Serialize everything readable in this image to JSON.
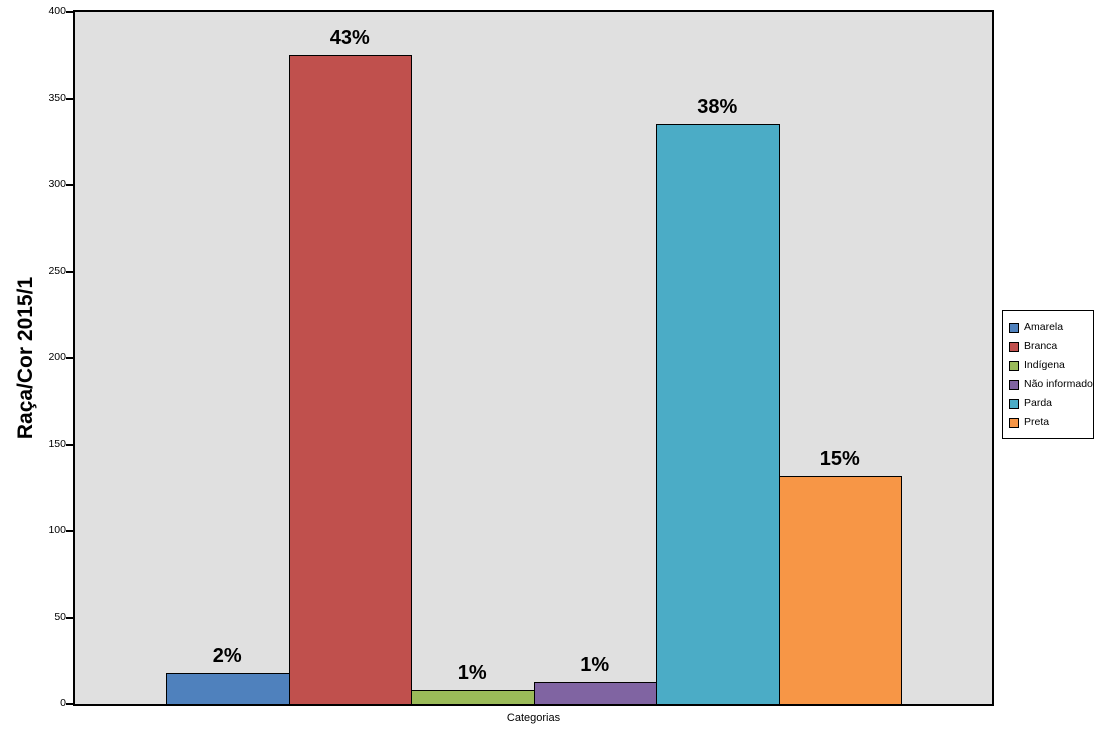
{
  "chart_data": {
    "type": "bar",
    "title": "",
    "ylabel": "Raça/Cor 2015/1",
    "xlabel": "Categorias",
    "ylim": [
      0,
      400
    ],
    "yticks": [
      0,
      50,
      100,
      150,
      200,
      250,
      300,
      350,
      400
    ],
    "grid": false,
    "legend_position": "right",
    "plot_background": "#E0E0E0",
    "categories": [
      "Amarela",
      "Branca",
      "Indígena",
      "Não informado",
      "Parda",
      "Preta"
    ],
    "values": [
      18,
      375,
      8,
      13,
      335,
      132
    ],
    "bar_labels": [
      "2%",
      "43%",
      "1%",
      "1%",
      "38%",
      "15%"
    ],
    "colors": [
      "#4F81BD",
      "#C0504D",
      "#9BBB59",
      "#8064A2",
      "#4BACC6",
      "#F79646"
    ]
  }
}
